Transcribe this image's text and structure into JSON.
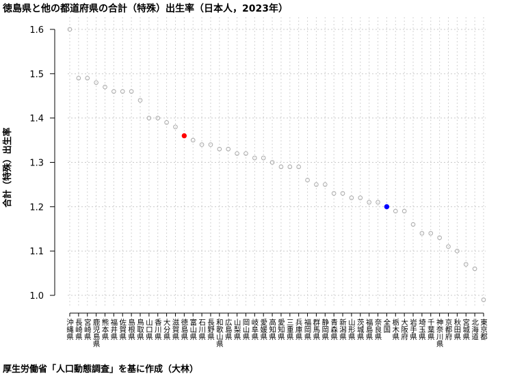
{
  "title": "徳島県と他の都道府県の合計（特殊）出生率（日本人，2023年）",
  "source": "厚生労働省「人口動態調査」を基に作成（大林）",
  "chart_data": {
    "type": "scatter",
    "title": "徳島県と他の都道府県の合計（特殊）出生率（日本人，2023年）",
    "xlabel": "",
    "ylabel": "合計（特殊）出生率",
    "ylim": [
      0.98,
      1.62
    ],
    "yticks": [
      "1.0",
      "1.1",
      "1.2",
      "1.3",
      "1.4",
      "1.5",
      "1.6"
    ],
    "grid": true,
    "categories": [
      "沖縄県",
      "長崎県",
      "宮崎県",
      "鹿児島県",
      "熊本県",
      "福井県",
      "佐賀県",
      "島根県",
      "鳥取県",
      "山口県",
      "香川県",
      "大分県",
      "滋賀県",
      "徳島県",
      "富山県",
      "石川県",
      "長野県",
      "和歌山県",
      "広島県",
      "山梨県",
      "岡山県",
      "岐阜県",
      "愛媛県",
      "高知県",
      "愛知県",
      "三重県",
      "兵庫県",
      "福岡県",
      "群馬県",
      "静岡県",
      "青森県",
      "新潟県",
      "山形県",
      "茨城県",
      "福島県",
      "奈良県",
      "全国",
      "栃木県",
      "大阪府",
      "岩手県",
      "埼玉県",
      "千葉県",
      "神奈川県",
      "京都府",
      "秋田県",
      "宮城県",
      "北海道",
      "東京都"
    ],
    "values": [
      1.6,
      1.49,
      1.49,
      1.48,
      1.47,
      1.46,
      1.46,
      1.46,
      1.44,
      1.4,
      1.4,
      1.39,
      1.38,
      1.36,
      1.35,
      1.34,
      1.34,
      1.33,
      1.33,
      1.32,
      1.32,
      1.31,
      1.31,
      1.3,
      1.29,
      1.29,
      1.29,
      1.26,
      1.25,
      1.25,
      1.23,
      1.23,
      1.22,
      1.22,
      1.21,
      1.21,
      1.2,
      1.19,
      1.19,
      1.16,
      1.14,
      1.14,
      1.13,
      1.11,
      1.1,
      1.07,
      1.06,
      0.99
    ],
    "highlights": [
      {
        "category": "徳島県",
        "color": "#ff0000"
      },
      {
        "category": "全国",
        "color": "#0000ff"
      }
    ],
    "default_point_color": "#aaaaaa"
  }
}
